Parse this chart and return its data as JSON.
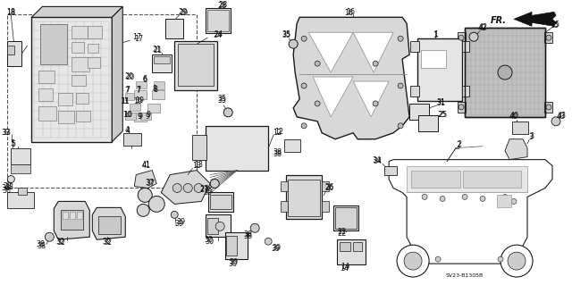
{
  "bg_color": "#ffffff",
  "fig_width": 6.4,
  "fig_height": 3.19,
  "dpi": 100,
  "line_color": "#1a1a1a",
  "text_color": "#111111",
  "font_size": 5.8,
  "diagram_label": "SV23-B1305B"
}
